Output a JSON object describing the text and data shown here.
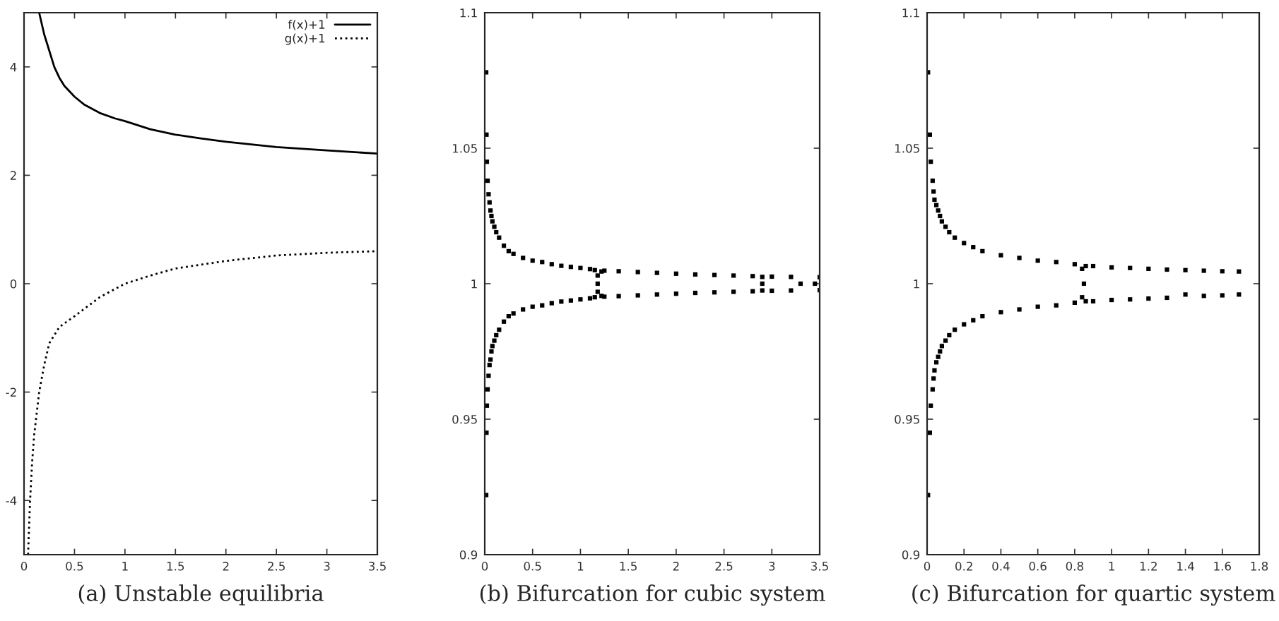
{
  "chart_data": [
    {
      "type": "line",
      "title": "(a) Unstable equilibria",
      "xlim": [
        0,
        3.5
      ],
      "ylim": [
        -5,
        5
      ],
      "xticks": [
        0,
        0.5,
        1,
        1.5,
        2,
        2.5,
        3,
        3.5
      ],
      "yticks": [
        -4,
        -2,
        0,
        2,
        4
      ],
      "legend": "top right",
      "grid": false,
      "series": [
        {
          "name": "f(x)+1",
          "color": "#000000",
          "line_style": "solid",
          "x": [
            0.15,
            0.2,
            0.25,
            0.3,
            0.35,
            0.4,
            0.5,
            0.6,
            0.75,
            0.9,
            1.0,
            1.25,
            1.5,
            1.75,
            2.0,
            2.5,
            3.0,
            3.5
          ],
          "values": [
            5,
            4.6,
            4.3,
            4.0,
            3.8,
            3.65,
            3.45,
            3.3,
            3.15,
            3.05,
            3.0,
            2.85,
            2.75,
            2.68,
            2.62,
            2.52,
            2.46,
            2.4
          ]
        },
        {
          "name": "g(x)+1",
          "color": "#000000",
          "line_style": "dotted",
          "x": [
            0.04,
            0.06,
            0.08,
            0.1,
            0.15,
            0.2,
            0.25,
            0.35,
            0.5,
            0.75,
            1.0,
            1.25,
            1.5,
            2.0,
            2.5,
            3.0,
            3.5
          ],
          "values": [
            -5,
            -4,
            -3.3,
            -2.8,
            -2.0,
            -1.5,
            -1.1,
            -0.8,
            -0.6,
            -0.25,
            0.0,
            0.15,
            0.28,
            0.42,
            0.52,
            0.57,
            0.6
          ]
        }
      ]
    },
    {
      "type": "scatter",
      "title": "(b) Bifurcation for cubic system",
      "xlim": [
        0,
        3.5
      ],
      "ylim": [
        0.9,
        1.1
      ],
      "xticks": [
        0,
        0.5,
        1,
        1.5,
        2,
        2.5,
        3,
        3.5
      ],
      "yticks": [
        0.9,
        0.95,
        1,
        1.05,
        1.1
      ],
      "marker": "square",
      "grid": false,
      "legend": false,
      "series": [
        {
          "color": "#000000",
          "x": [
            0.015,
            0.018,
            0.022,
            0.03,
            0.04,
            0.05,
            0.06,
            0.07,
            0.08,
            0.1,
            0.12,
            0.15,
            0.2,
            0.25,
            0.3,
            0.4,
            0.5,
            0.6,
            0.7,
            0.8,
            0.9,
            1.0,
            1.1,
            1.15,
            1.18,
            1.22,
            1.25,
            1.4,
            1.6,
            1.8,
            2.0,
            2.2,
            2.4,
            2.6,
            2.8,
            2.9,
            3.0,
            3.2,
            3.5
          ],
          "values": [
            1.078,
            1.055,
            1.045,
            1.038,
            1.033,
            1.03,
            1.027,
            1.025,
            1.023,
            1.021,
            1.019,
            1.017,
            1.014,
            1.012,
            1.011,
            1.0095,
            1.0085,
            1.008,
            1.0072,
            1.0066,
            1.0062,
            1.0058,
            1.0054,
            1.005,
            1.003,
            1.0045,
            1.0048,
            1.0046,
            1.0043,
            1.004,
            1.0037,
            1.0034,
            1.0032,
            1.003,
            1.0028,
            1.0025,
            1.0026,
            1.0025,
            1.0024
          ]
        },
        {
          "color": "#000000",
          "x": [
            0.015,
            0.018,
            0.022,
            0.03,
            0.04,
            0.05,
            0.06,
            0.07,
            0.08,
            0.1,
            0.12,
            0.15,
            0.2,
            0.25,
            0.3,
            0.4,
            0.5,
            0.6,
            0.7,
            0.8,
            0.9,
            1.0,
            1.1,
            1.15,
            1.18,
            1.22,
            1.25,
            1.4,
            1.6,
            1.8,
            2.0,
            2.2,
            2.4,
            2.6,
            2.8,
            2.9,
            3.0,
            3.2,
            3.5
          ],
          "values": [
            0.922,
            0.945,
            0.955,
            0.961,
            0.966,
            0.97,
            0.972,
            0.975,
            0.977,
            0.979,
            0.981,
            0.983,
            0.986,
            0.988,
            0.989,
            0.9905,
            0.9915,
            0.992,
            0.9928,
            0.9934,
            0.9938,
            0.9942,
            0.9946,
            0.995,
            0.997,
            0.9955,
            0.9952,
            0.9954,
            0.9957,
            0.996,
            0.9963,
            0.9966,
            0.9968,
            0.997,
            0.9972,
            0.9975,
            0.9974,
            0.9975,
            0.9976
          ]
        },
        {
          "color": "#000000",
          "x": [
            1.18,
            2.9,
            3.3,
            3.45
          ],
          "values": [
            1.0,
            1.0,
            1.0,
            1.0
          ]
        }
      ]
    },
    {
      "type": "scatter",
      "title": "(c) Bifurcation for quartic system",
      "xlim": [
        0,
        1.8
      ],
      "ylim": [
        0.9,
        1.1
      ],
      "xticks": [
        0,
        0.2,
        0.4,
        0.6,
        0.8,
        1,
        1.2,
        1.4,
        1.6,
        1.8
      ],
      "yticks": [
        0.9,
        0.95,
        1,
        1.05,
        1.1
      ],
      "marker": "square",
      "grid": false,
      "legend": false,
      "series": [
        {
          "color": "#000000",
          "x": [
            0.005,
            0.015,
            0.02,
            0.03,
            0.035,
            0.04,
            0.05,
            0.06,
            0.07,
            0.08,
            0.1,
            0.12,
            0.15,
            0.2,
            0.25,
            0.3,
            0.4,
            0.5,
            0.6,
            0.7,
            0.8,
            0.84,
            0.86,
            0.9,
            1.0,
            1.1,
            1.2,
            1.3,
            1.4,
            1.5,
            1.6,
            1.69
          ],
          "values": [
            1.078,
            1.055,
            1.045,
            1.038,
            1.034,
            1.031,
            1.029,
            1.027,
            1.025,
            1.023,
            1.021,
            1.019,
            1.017,
            1.015,
            1.0135,
            1.012,
            1.0105,
            1.0095,
            1.0085,
            1.008,
            1.0072,
            1.0055,
            1.0065,
            1.0065,
            1.006,
            1.0058,
            1.0055,
            1.0052,
            1.005,
            1.0048,
            1.0046,
            1.0045
          ]
        },
        {
          "color": "#000000",
          "x": [
            0.005,
            0.015,
            0.02,
            0.03,
            0.035,
            0.04,
            0.05,
            0.06,
            0.07,
            0.08,
            0.1,
            0.12,
            0.15,
            0.2,
            0.25,
            0.3,
            0.4,
            0.5,
            0.6,
            0.7,
            0.8,
            0.84,
            0.86,
            0.9,
            1.0,
            1.1,
            1.2,
            1.3,
            1.4,
            1.5,
            1.6,
            1.69
          ],
          "values": [
            0.922,
            0.945,
            0.955,
            0.961,
            0.965,
            0.968,
            0.971,
            0.973,
            0.975,
            0.977,
            0.979,
            0.981,
            0.983,
            0.985,
            0.9865,
            0.988,
            0.9895,
            0.9905,
            0.9915,
            0.992,
            0.993,
            0.995,
            0.9935,
            0.9935,
            0.994,
            0.9942,
            0.9945,
            0.9948,
            0.996,
            0.9955,
            0.9957,
            0.996
          ]
        },
        {
          "color": "#000000",
          "x": [
            0.85
          ],
          "values": [
            1.0
          ]
        }
      ]
    }
  ]
}
